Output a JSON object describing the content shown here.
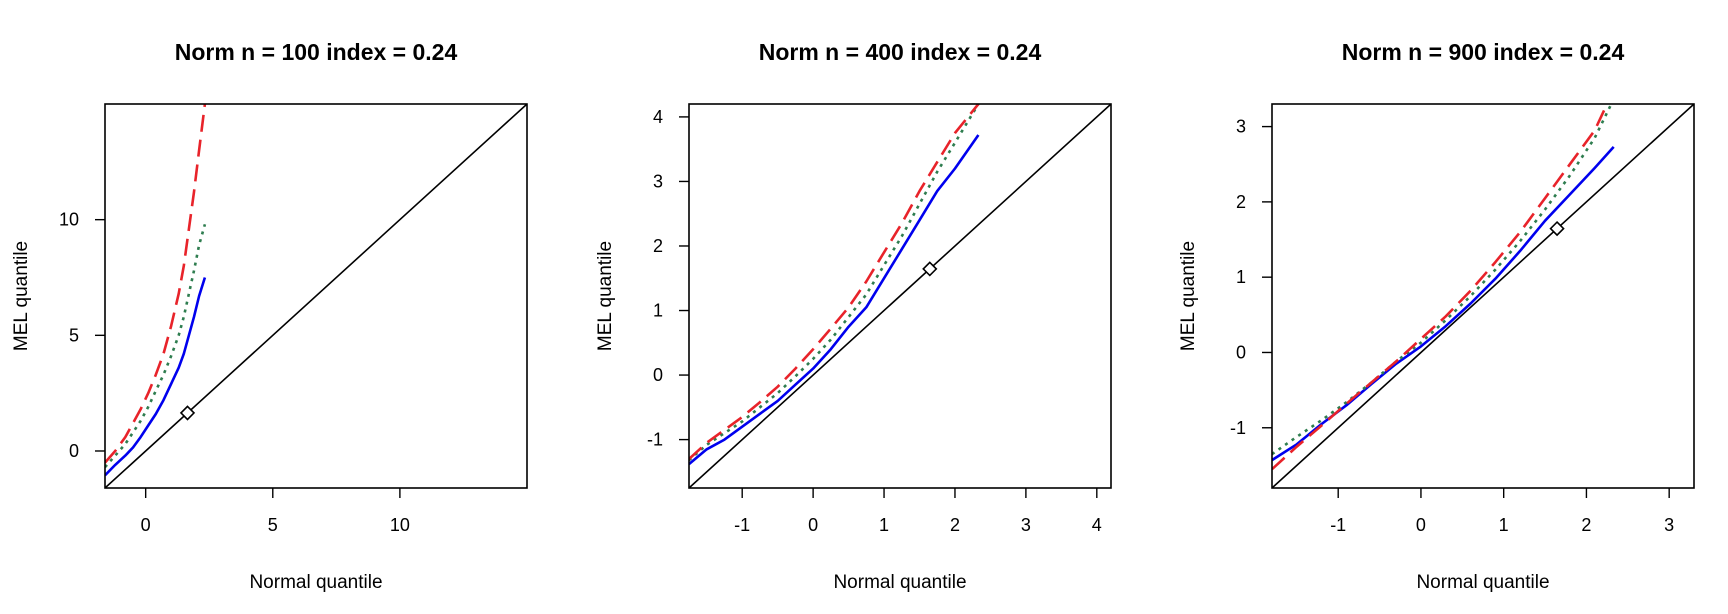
{
  "chart_data": [
    {
      "type": "line",
      "title": "Norm n = 100 index = 0.24",
      "xlabel": "Normal quantile",
      "ylabel": "MEL quantile",
      "xlim": [
        -1.6,
        15.0
      ],
      "ylim": [
        -1.6,
        15.0
      ],
      "xticks": [
        0,
        5,
        10
      ],
      "yticks": [
        0,
        5,
        10
      ],
      "marker": {
        "shape": "diamond",
        "x": 1.645,
        "y": 1.645
      },
      "series": [
        {
          "style": "solid",
          "color": "#0000ee",
          "x": [
            -1.6,
            -1.2,
            -0.8,
            -0.5,
            -0.2,
            0.1,
            0.4,
            0.7,
            1.0,
            1.3,
            1.5,
            1.7,
            1.9,
            2.1,
            2.33
          ],
          "y": [
            -1.05,
            -0.6,
            -0.2,
            0.15,
            0.6,
            1.1,
            1.6,
            2.2,
            2.9,
            3.6,
            4.2,
            5.0,
            5.8,
            6.7,
            7.5
          ]
        },
        {
          "style": "dotted",
          "color": "#2e7d4f",
          "x": [
            -1.6,
            -1.2,
            -0.8,
            -0.5,
            -0.2,
            0.1,
            0.4,
            0.7,
            1.0,
            1.3,
            1.5,
            1.7,
            1.9,
            2.1,
            2.33
          ],
          "y": [
            -0.7,
            -0.2,
            0.3,
            0.8,
            1.3,
            1.9,
            2.6,
            3.3,
            4.1,
            5.0,
            5.8,
            6.8,
            7.8,
            8.9,
            9.8
          ]
        },
        {
          "style": "dashed",
          "color": "#e8232a",
          "x": [
            -1.6,
            -1.2,
            -0.8,
            -0.5,
            -0.2,
            0.1,
            0.4,
            0.7,
            1.0,
            1.3,
            1.5,
            1.7,
            1.9,
            2.1,
            2.33
          ],
          "y": [
            -0.5,
            0.0,
            0.6,
            1.2,
            1.8,
            2.5,
            3.3,
            4.2,
            5.4,
            6.8,
            8.0,
            9.6,
            11.2,
            13.0,
            15.0
          ]
        }
      ]
    },
    {
      "type": "line",
      "title": "Norm n = 400 index = 0.24",
      "xlabel": "Normal quantile",
      "ylabel": "MEL quantile",
      "xlim": [
        -1.75,
        4.2
      ],
      "ylim": [
        -1.75,
        4.2
      ],
      "xticks": [
        -1,
        0,
        1,
        2,
        3,
        4
      ],
      "yticks": [
        -1,
        0,
        1,
        2,
        3,
        4
      ],
      "marker": {
        "shape": "diamond",
        "x": 1.645,
        "y": 1.645
      },
      "series": [
        {
          "style": "solid",
          "color": "#0000ee",
          "x": [
            -1.75,
            -1.5,
            -1.25,
            -1.0,
            -0.75,
            -0.5,
            -0.25,
            0.0,
            0.25,
            0.5,
            0.75,
            1.0,
            1.25,
            1.5,
            1.75,
            2.0,
            2.33
          ],
          "y": [
            -1.38,
            -1.15,
            -1.0,
            -0.8,
            -0.6,
            -0.4,
            -0.15,
            0.1,
            0.4,
            0.75,
            1.05,
            1.5,
            1.95,
            2.4,
            2.85,
            3.2,
            3.72
          ]
        },
        {
          "style": "dotted",
          "color": "#2e7d4f",
          "x": [
            -1.75,
            -1.5,
            -1.25,
            -1.0,
            -0.75,
            -0.5,
            -0.25,
            0.0,
            0.25,
            0.5,
            0.75,
            1.0,
            1.25,
            1.5,
            1.75,
            2.0,
            2.33
          ],
          "y": [
            -1.32,
            -1.08,
            -0.9,
            -0.72,
            -0.5,
            -0.28,
            -0.02,
            0.25,
            0.55,
            0.9,
            1.25,
            1.7,
            2.15,
            2.65,
            3.15,
            3.6,
            4.2
          ]
        },
        {
          "style": "dashed",
          "color": "#e8232a",
          "x": [
            -1.75,
            -1.5,
            -1.25,
            -1.0,
            -0.75,
            -0.5,
            -0.25,
            0.0,
            0.25,
            0.5,
            0.75,
            1.0,
            1.25,
            1.5,
            1.75,
            2.0,
            2.33
          ],
          "y": [
            -1.3,
            -1.05,
            -0.85,
            -0.65,
            -0.42,
            -0.18,
            0.1,
            0.4,
            0.72,
            1.05,
            1.45,
            1.9,
            2.35,
            2.85,
            3.3,
            3.75,
            4.2
          ]
        }
      ]
    },
    {
      "type": "line",
      "title": "Norm n = 900 index = 0.24",
      "xlabel": "Normal quantile",
      "ylabel": "MEL quantile",
      "xlim": [
        -1.8,
        3.3
      ],
      "ylim": [
        -1.8,
        3.3
      ],
      "xticks": [
        -1,
        0,
        1,
        2,
        3
      ],
      "yticks": [
        -1,
        0,
        1,
        2,
        3
      ],
      "marker": {
        "shape": "diamond",
        "x": 1.645,
        "y": 1.645
      },
      "series": [
        {
          "style": "solid",
          "color": "#0000ee",
          "x": [
            -1.8,
            -1.5,
            -1.2,
            -0.9,
            -0.6,
            -0.3,
            0.0,
            0.3,
            0.6,
            0.9,
            1.2,
            1.5,
            1.8,
            2.1,
            2.33
          ],
          "y": [
            -1.43,
            -1.22,
            -0.95,
            -0.7,
            -0.42,
            -0.15,
            0.08,
            0.35,
            0.65,
            0.98,
            1.35,
            1.75,
            2.1,
            2.45,
            2.73
          ]
        },
        {
          "style": "dotted",
          "color": "#2e7d4f",
          "x": [
            -1.8,
            -1.5,
            -1.2,
            -0.9,
            -0.6,
            -0.3,
            0.0,
            0.3,
            0.6,
            0.9,
            1.2,
            1.5,
            1.8,
            2.1,
            2.3
          ],
          "y": [
            -1.35,
            -1.12,
            -0.9,
            -0.66,
            -0.4,
            -0.12,
            0.13,
            0.43,
            0.75,
            1.1,
            1.48,
            1.9,
            2.35,
            2.85,
            3.3
          ]
        },
        {
          "style": "dashed",
          "color": "#e8232a",
          "x": [
            -1.8,
            -1.5,
            -1.2,
            -0.9,
            -0.6,
            -0.3,
            0.0,
            0.3,
            0.6,
            0.9,
            1.2,
            1.5,
            1.8,
            2.1,
            2.25
          ],
          "y": [
            -1.55,
            -1.25,
            -0.97,
            -0.68,
            -0.4,
            -0.12,
            0.18,
            0.48,
            0.82,
            1.2,
            1.6,
            2.05,
            2.5,
            2.95,
            3.3
          ]
        }
      ]
    }
  ]
}
